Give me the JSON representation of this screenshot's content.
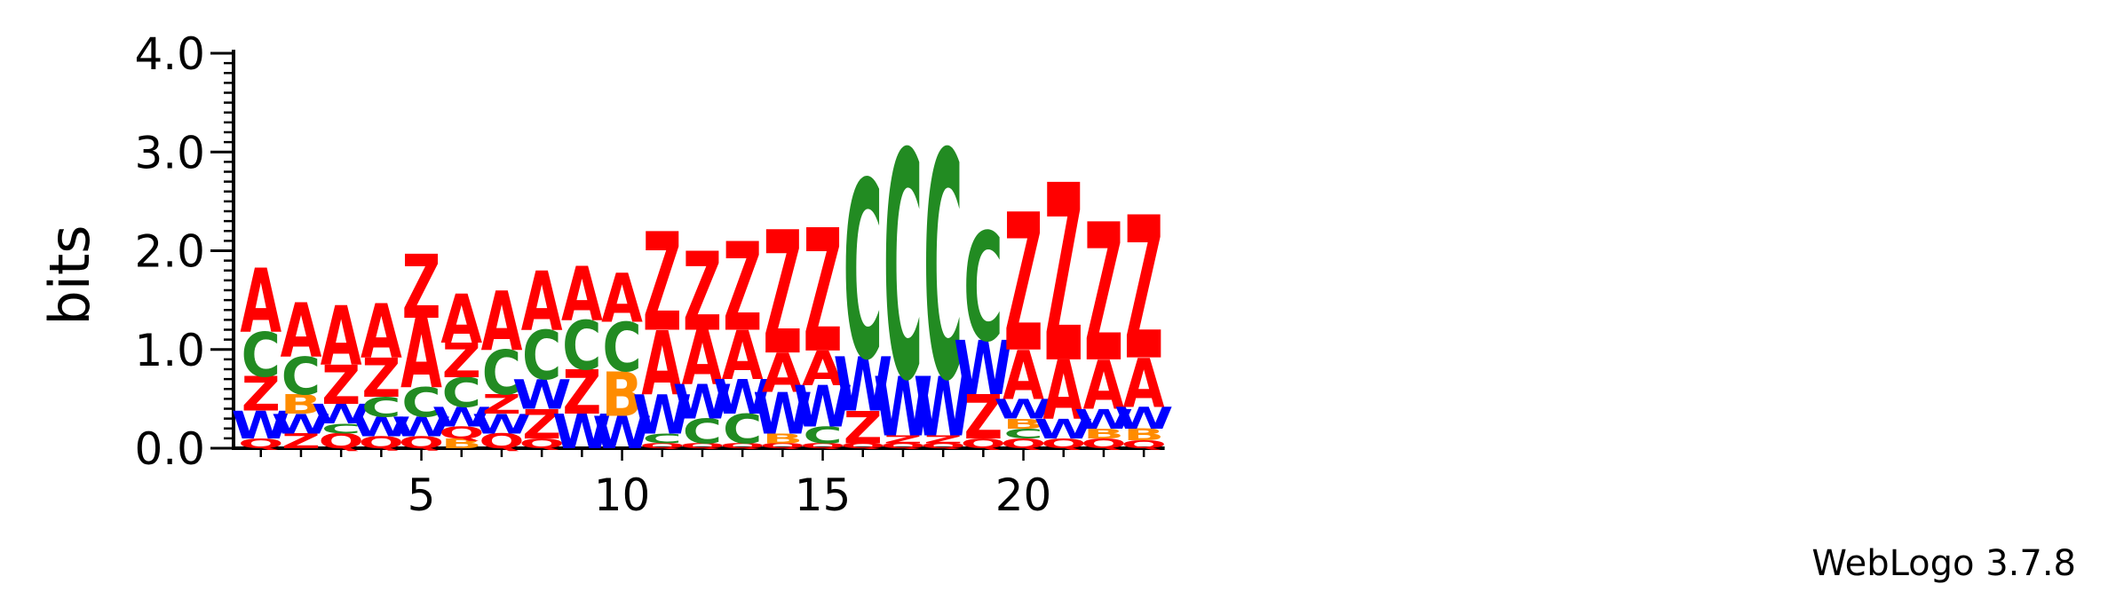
{
  "chart_data": {
    "type": "sequence-logo",
    "ylabel": "bits",
    "ylim": [
      0,
      4.0
    ],
    "y_ticks": [
      "0.0",
      "1.0",
      "2.0",
      "3.0",
      "4.0"
    ],
    "x_ticks": [
      {
        "position": 5,
        "label": "5"
      },
      {
        "position": 10,
        "label": "10"
      },
      {
        "position": 15,
        "label": "15"
      },
      {
        "position": 20,
        "label": "20"
      }
    ],
    "colors": {
      "A": "#ff0000",
      "Z": "#ff0000",
      "C": "#228b22",
      "W": "#0000ff",
      "B": "#ff8c00",
      "Q": "#ff0000"
    },
    "positions": [
      {
        "pos": 1,
        "stack": [
          [
            "Q",
            0.1
          ],
          [
            "W",
            0.28
          ],
          [
            "Z",
            0.35
          ],
          [
            "C",
            0.45
          ],
          [
            "A",
            0.65
          ]
        ]
      },
      {
        "pos": 2,
        "stack": [
          [
            "Z",
            0.15
          ],
          [
            "W",
            0.2
          ],
          [
            "B",
            0.2
          ],
          [
            "C",
            0.38
          ],
          [
            "A",
            0.55
          ]
        ]
      },
      {
        "pos": 3,
        "stack": [
          [
            "Q",
            0.15
          ],
          [
            "C",
            0.1
          ],
          [
            "W",
            0.2
          ],
          [
            "Z",
            0.4
          ],
          [
            "A",
            0.6
          ]
        ]
      },
      {
        "pos": 4,
        "stack": [
          [
            "Q",
            0.12
          ],
          [
            "W",
            0.2
          ],
          [
            "C",
            0.2
          ],
          [
            "Z",
            0.4
          ],
          [
            "A",
            0.55
          ]
        ]
      },
      {
        "pos": 5,
        "stack": [
          [
            "Q",
            0.12
          ],
          [
            "W",
            0.2
          ],
          [
            "C",
            0.3
          ],
          [
            "A",
            0.7
          ],
          [
            "Z",
            0.65
          ]
        ]
      },
      {
        "pos": 6,
        "stack": [
          [
            "B",
            0.1
          ],
          [
            "Q",
            0.12
          ],
          [
            "W",
            0.2
          ],
          [
            "C",
            0.3
          ],
          [
            "Z",
            0.35
          ],
          [
            "A",
            0.5
          ]
        ]
      },
      {
        "pos": 7,
        "stack": [
          [
            "Q",
            0.15
          ],
          [
            "W",
            0.2
          ],
          [
            "Z",
            0.2
          ],
          [
            "C",
            0.45
          ],
          [
            "A",
            0.6
          ]
        ]
      },
      {
        "pos": 8,
        "stack": [
          [
            "Q",
            0.1
          ],
          [
            "Z",
            0.3
          ],
          [
            "W",
            0.3
          ],
          [
            "C",
            0.5
          ],
          [
            "A",
            0.6
          ]
        ]
      },
      {
        "pos": 9,
        "stack": [
          [
            "W",
            0.35
          ],
          [
            "Z",
            0.45
          ],
          [
            "C",
            0.5
          ],
          [
            "A",
            0.55
          ]
        ]
      },
      {
        "pos": 10,
        "stack": [
          [
            "W",
            0.33
          ],
          [
            "B",
            0.45
          ],
          [
            "C",
            0.5
          ],
          [
            "A",
            0.5
          ]
        ]
      },
      {
        "pos": 11,
        "stack": [
          [
            "Q",
            0.05
          ],
          [
            "C",
            0.1
          ],
          [
            "W",
            0.4
          ],
          [
            "A",
            0.65
          ],
          [
            "Z",
            1.0
          ]
        ]
      },
      {
        "pos": 12,
        "stack": [
          [
            "Q",
            0.05
          ],
          [
            "C",
            0.25
          ],
          [
            "W",
            0.35
          ],
          [
            "A",
            0.55
          ],
          [
            "Z",
            0.8
          ]
        ]
      },
      {
        "pos": 13,
        "stack": [
          [
            "Q",
            0.05
          ],
          [
            "C",
            0.3
          ],
          [
            "W",
            0.35
          ],
          [
            "A",
            0.5
          ],
          [
            "Z",
            0.9
          ]
        ]
      },
      {
        "pos": 14,
        "stack": [
          [
            "Q",
            0.05
          ],
          [
            "B",
            0.1
          ],
          [
            "W",
            0.42
          ],
          [
            "A",
            0.4
          ],
          [
            "Z",
            1.25
          ]
        ]
      },
      {
        "pos": 15,
        "stack": [
          [
            "Q",
            0.05
          ],
          [
            "C",
            0.17
          ],
          [
            "W",
            0.42
          ],
          [
            "A",
            0.35
          ],
          [
            "Z",
            1.25
          ]
        ]
      },
      {
        "pos": 16,
        "stack": [
          [
            "Q",
            0.05
          ],
          [
            "Z",
            0.33
          ],
          [
            "W",
            0.55
          ],
          [
            "C",
            1.8
          ]
        ]
      },
      {
        "pos": 17,
        "stack": [
          [
            "Q",
            0.05
          ],
          [
            "Z",
            0.08
          ],
          [
            "W",
            0.6
          ],
          [
            "C",
            2.3
          ]
        ]
      },
      {
        "pos": 18,
        "stack": [
          [
            "Q",
            0.05
          ],
          [
            "Z",
            0.08
          ],
          [
            "W",
            0.6
          ],
          [
            "C",
            2.3
          ]
        ]
      },
      {
        "pos": 19,
        "stack": [
          [
            "Q",
            0.1
          ],
          [
            "Z",
            0.45
          ],
          [
            "W",
            0.55
          ],
          [
            "C",
            1.1
          ]
        ]
      },
      {
        "pos": 20,
        "stack": [
          [
            "Q",
            0.1
          ],
          [
            "C",
            0.1
          ],
          [
            "B",
            0.1
          ],
          [
            "W",
            0.2
          ],
          [
            "A",
            0.5
          ],
          [
            "Z",
            1.4
          ]
        ]
      },
      {
        "pos": 21,
        "stack": [
          [
            "Q",
            0.1
          ],
          [
            "W",
            0.2
          ],
          [
            "A",
            0.6
          ],
          [
            "Z",
            1.8
          ]
        ]
      },
      {
        "pos": 22,
        "stack": [
          [
            "Q",
            0.1
          ],
          [
            "B",
            0.1
          ],
          [
            "W",
            0.2
          ],
          [
            "A",
            0.5
          ],
          [
            "Z",
            1.4
          ]
        ]
      },
      {
        "pos": 23,
        "stack": [
          [
            "Q",
            0.08
          ],
          [
            "B",
            0.12
          ],
          [
            "W",
            0.22
          ],
          [
            "A",
            0.5
          ],
          [
            "Z",
            1.45
          ]
        ]
      }
    ]
  },
  "footer": {
    "credit": "WebLogo 3.7.8"
  }
}
